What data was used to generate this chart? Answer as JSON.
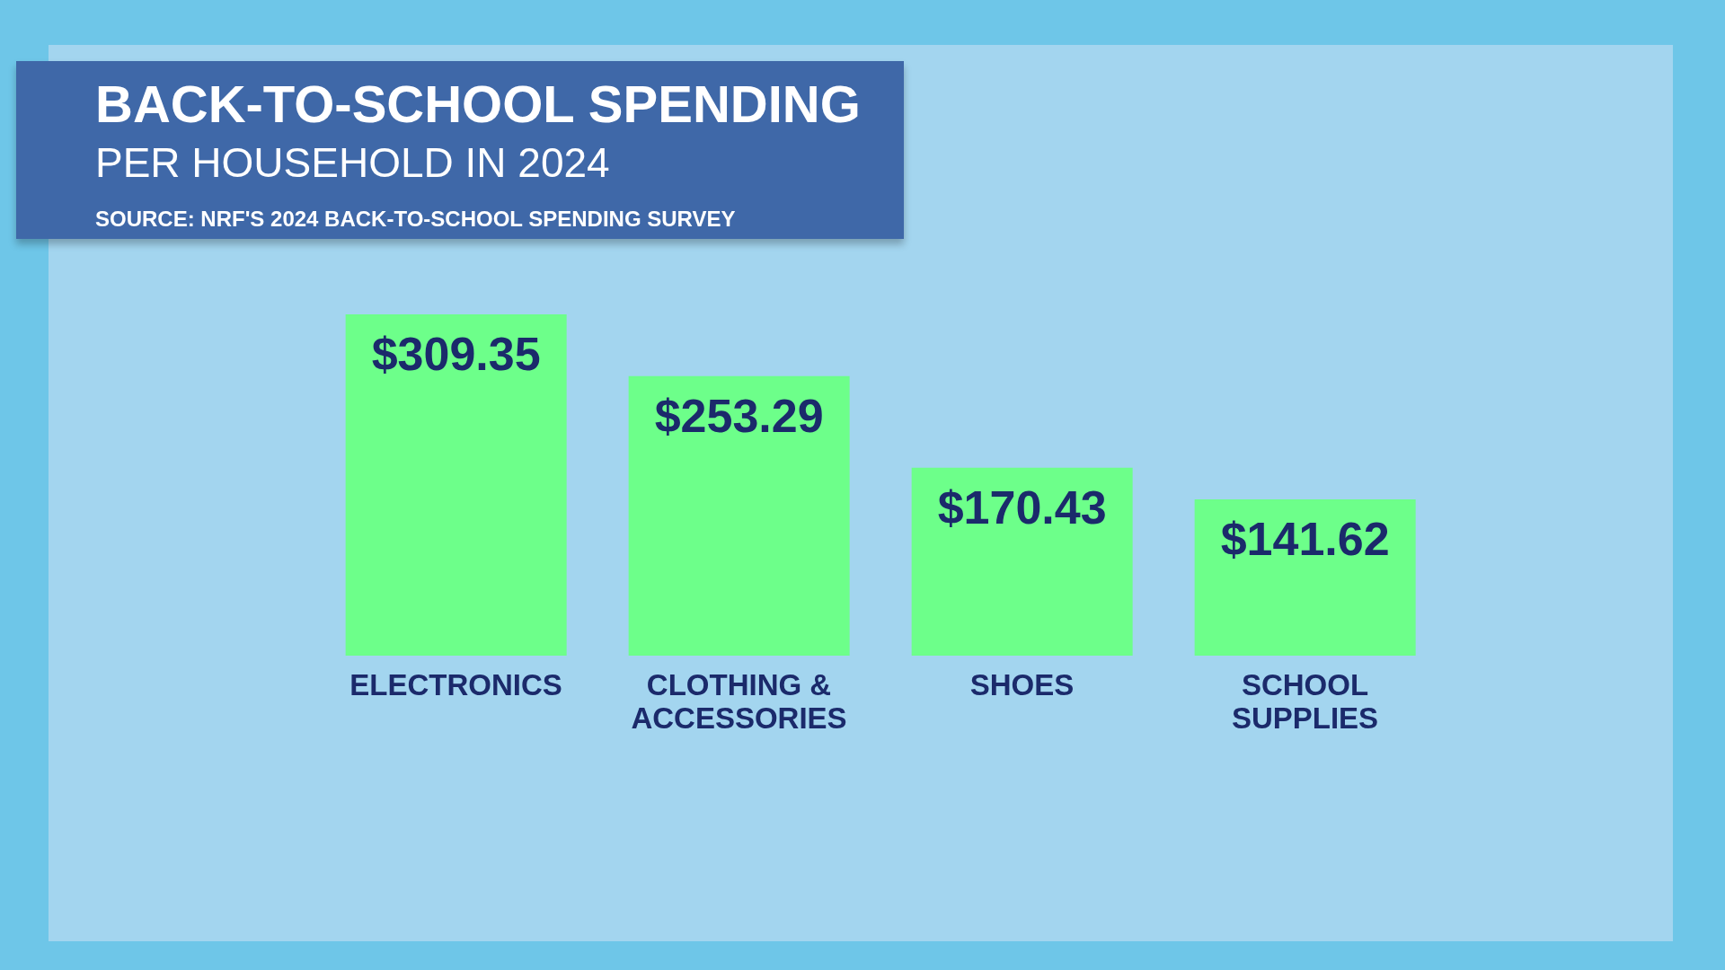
{
  "chart_data": {
    "type": "bar",
    "title": "BACK-TO-SCHOOL SPENDING",
    "subtitle": "PER HOUSEHOLD IN 2024",
    "annotations": [
      "SOURCE: NRF'S 2024 BACK-TO-SCHOOL SPENDING SURVEY"
    ],
    "categories": [
      "ELECTRONICS",
      "CLOTHING & ACCESSORIES",
      "SHOES",
      "SCHOOL SUPPLIES"
    ],
    "values": [
      309.35,
      253.29,
      170.43,
      141.62
    ],
    "value_labels": [
      "$309.35",
      "$253.29",
      "$170.43",
      "$141.62"
    ],
    "color": "#6dff8a"
  }
}
